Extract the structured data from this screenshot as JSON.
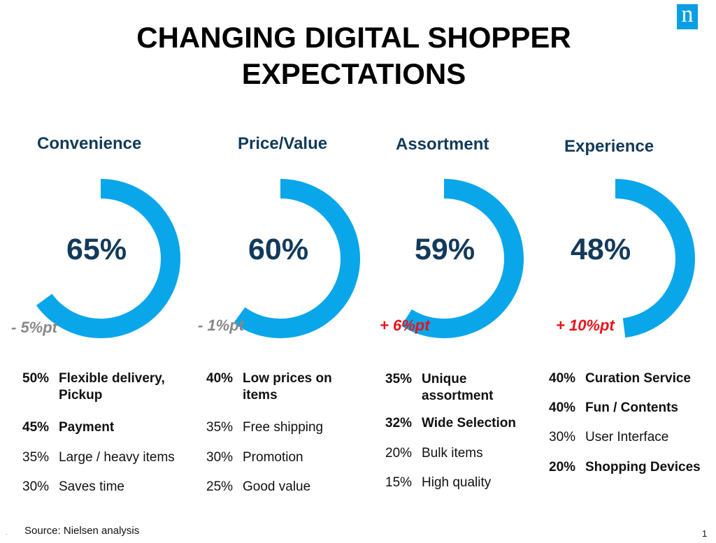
{
  "logo_letter": "n",
  "title_line1": "CHANGING DIGITAL SHOPPER",
  "title_line2": "EXPECTATIONS",
  "accent_color": "#0aa6ea",
  "categories": [
    {
      "heading": "Convenience",
      "percent": "65%",
      "percent_value": 65,
      "change": "- 5%pt",
      "change_direction": "down",
      "items": [
        {
          "pct": "50%",
          "label": "Flexible delivery,",
          "label2": "Pickup",
          "bold": true
        },
        {
          "pct": "45%",
          "label": "Payment",
          "label2": "",
          "bold": true
        },
        {
          "pct": "35%",
          "label": "Large / heavy items",
          "label2": "",
          "bold": false
        },
        {
          "pct": "30%",
          "label": "Saves time",
          "label2": "",
          "bold": false
        }
      ]
    },
    {
      "heading": "Price/Value",
      "percent": "60%",
      "percent_value": 60,
      "change": "- 1%pt",
      "change_direction": "down",
      "items": [
        {
          "pct": "40%",
          "label": "Low prices on",
          "label2": "items",
          "bold": true
        },
        {
          "pct": "35%",
          "label": "Free shipping",
          "label2": "",
          "bold": false
        },
        {
          "pct": "30%",
          "label": "Promotion",
          "label2": "",
          "bold": false
        },
        {
          "pct": "25%",
          "label": "Good value",
          "label2": "",
          "bold": false
        }
      ]
    },
    {
      "heading": "Assortment",
      "percent": "59%",
      "percent_value": 59,
      "change": "+ 6%pt",
      "change_direction": "up",
      "items": [
        {
          "pct": "35%",
          "label": "Unique",
          "label2": "assortment",
          "bold": true
        },
        {
          "pct": "32%",
          "label": "Wide Selection",
          "label2": "",
          "bold": true
        },
        {
          "pct": "20%",
          "label": "Bulk items",
          "label2": "",
          "bold": false
        },
        {
          "pct": "15%",
          "label": "High quality",
          "label2": "",
          "bold": false
        }
      ]
    },
    {
      "heading": "Experience",
      "percent": "48%",
      "percent_value": 48,
      "change": "+ 10%pt",
      "change_direction": "up",
      "items": [
        {
          "pct": "40%",
          "label": "Curation Service",
          "label2": "",
          "bold": true
        },
        {
          "pct": "40%",
          "label": "Fun / Contents",
          "label2": "",
          "bold": true
        },
        {
          "pct": "30%",
          "label": "User Interface",
          "label2": "",
          "bold": false
        },
        {
          "pct": "20%",
          "label": "Shopping Devices",
          "label2": "",
          "bold": true
        }
      ]
    }
  ],
  "source": "Source: Nielsen analysis",
  "bullet": ".",
  "page_number": "1"
}
